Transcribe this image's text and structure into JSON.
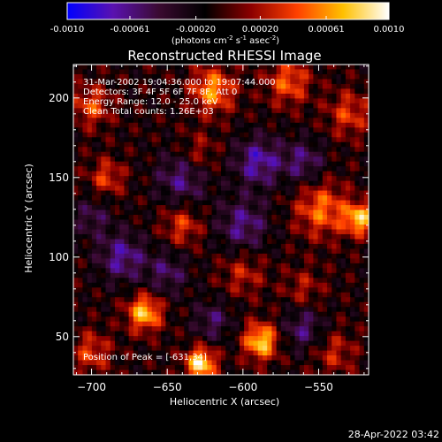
{
  "chart_data": {
    "type": "heatmap",
    "title": "Reconstructed RHESSI Image",
    "xlabel": "Heliocentric X (arcsec)",
    "ylabel": "Heliocentric Y (arcsec)",
    "xlim": [
      -712,
      -517
    ],
    "ylim": [
      26,
      221
    ],
    "xticks": [
      -700,
      -650,
      -600,
      -550
    ],
    "yticks": [
      50,
      100,
      150,
      200
    ],
    "colorbar": {
      "min": -0.001,
      "max": 0.001,
      "ticks": [
        "-0.0010",
        "-0.00061",
        "-0.00020",
        "0.00020",
        "0.00061",
        "0.0010"
      ],
      "tick_values": [
        -0.001,
        -0.00061,
        -0.0002,
        0.0002,
        0.00061,
        0.001
      ],
      "label_main": "(photons cm",
      "label_exp1": "-2",
      "label_mid1": " s",
      "label_exp2": "-1",
      "label_mid2": " asec",
      "label_exp3": "-2",
      "label_end": ")",
      "colors": [
        "#0000ff",
        "#5a12b0",
        "#3a0a30",
        "#000000",
        "#8c0000",
        "#ff4000",
        "#ffc000",
        "#ffffff"
      ]
    },
    "annotations": {
      "time_range": "31-Mar-2002 19:04:36.000 to 19:07:44.000",
      "detectors": "Detectors: 3F 4F 5F 6F 7F 8F, Att 0",
      "energy": "Energy Range: 12.0 - 25.0 keV",
      "clean": "Clean     Total counts: 1.26E+03",
      "peak": "Position of Peak = [-631,34]"
    },
    "peak_position": [
      -631,
      34
    ],
    "blobs": [
      {
        "x": -628,
        "y": 33,
        "amp": 1.0,
        "r": 7
      },
      {
        "x": -588,
        "y": 47,
        "amp": 0.9,
        "r": 8
      },
      {
        "x": -665,
        "y": 65,
        "amp": 0.85,
        "r": 8
      },
      {
        "x": -523,
        "y": 124,
        "amp": 0.85,
        "r": 7
      },
      {
        "x": -548,
        "y": 130,
        "amp": 0.6,
        "r": 12
      },
      {
        "x": -620,
        "y": 205,
        "amp": 0.7,
        "r": 10
      },
      {
        "x": -570,
        "y": 210,
        "amp": 0.55,
        "r": 10
      },
      {
        "x": -530,
        "y": 190,
        "amp": 0.45,
        "r": 10
      },
      {
        "x": -700,
        "y": 195,
        "amp": 0.5,
        "r": 9
      },
      {
        "x": -690,
        "y": 150,
        "amp": 0.45,
        "r": 8
      },
      {
        "x": -640,
        "y": 120,
        "amp": 0.45,
        "r": 9
      },
      {
        "x": -600,
        "y": 90,
        "amp": 0.35,
        "r": 10
      },
      {
        "x": -700,
        "y": 40,
        "amp": 0.45,
        "r": 9
      },
      {
        "x": -540,
        "y": 40,
        "amp": 0.35,
        "r": 10
      },
      {
        "x": -630,
        "y": 165,
        "amp": 0.35,
        "r": 9
      },
      {
        "x": -560,
        "y": 80,
        "amp": 0.3,
        "r": 9
      },
      {
        "x": -680,
        "y": 100,
        "amp": -0.55,
        "r": 11
      },
      {
        "x": -640,
        "y": 150,
        "amp": -0.5,
        "r": 12
      },
      {
        "x": -590,
        "y": 160,
        "amp": -0.6,
        "r": 11
      },
      {
        "x": -560,
        "y": 160,
        "amp": -0.45,
        "r": 10
      },
      {
        "x": -600,
        "y": 120,
        "amp": -0.5,
        "r": 12
      },
      {
        "x": -650,
        "y": 90,
        "amp": -0.4,
        "r": 10
      },
      {
        "x": -620,
        "y": 60,
        "amp": -0.4,
        "r": 9
      },
      {
        "x": -560,
        "y": 55,
        "amp": -0.45,
        "r": 10
      },
      {
        "x": -700,
        "y": 125,
        "amp": -0.35,
        "r": 9
      }
    ]
  },
  "footer": {
    "timestamp": "28-Apr-2022 03:42"
  }
}
